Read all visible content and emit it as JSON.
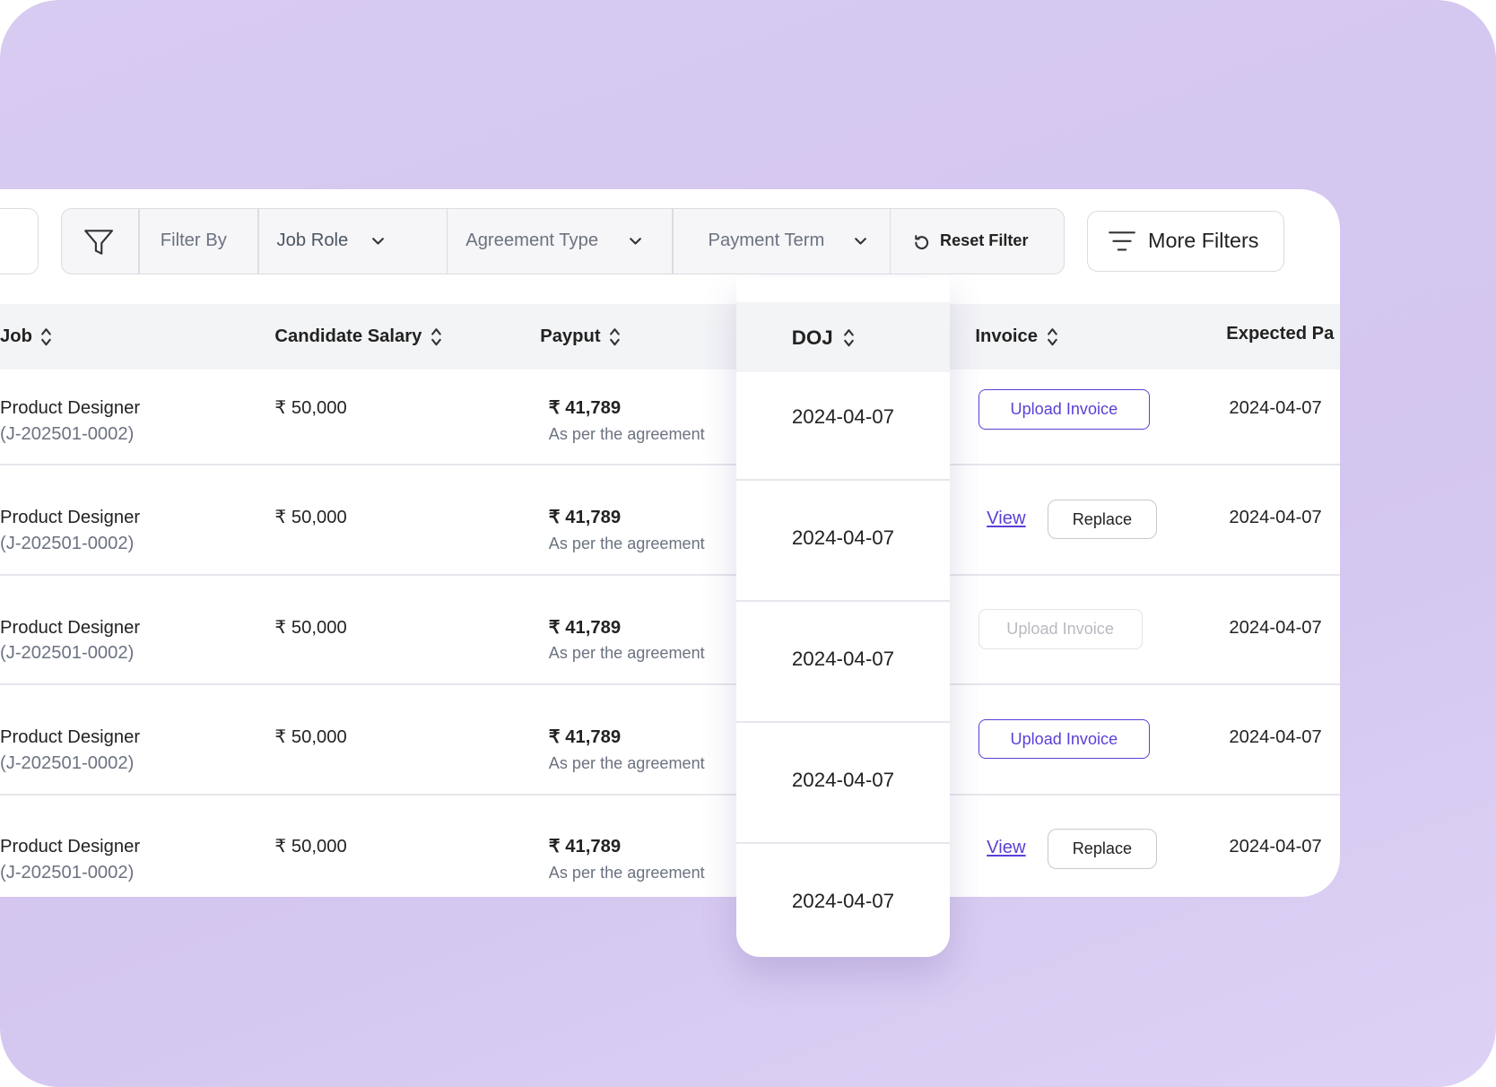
{
  "filters": {
    "filter_by": "Filter By",
    "job_role": "Job Role",
    "agreement_type": "Agreement Type",
    "payment_term": "Payment Term",
    "reset": "Reset Filter",
    "more": "More Filters"
  },
  "table": {
    "columns": [
      "Job",
      "Candidate Salary",
      "Payput",
      "DOJ",
      "Invoice",
      "Expected Pa"
    ],
    "rows": [
      {
        "job": "Product Designer",
        "job_id": "(J-202501-0002)",
        "salary": "₹ 50,000",
        "payout": "₹ 41,789",
        "payout_note": "As per the agreement",
        "doj": "2024-04-07",
        "invoice": [
          "Upload Invoice"
        ],
        "invoice_disabled": false,
        "expected": "2024-04-07"
      },
      {
        "job": "Product Designer",
        "job_id": "(J-202501-0002)",
        "salary": "₹ 50,000",
        "payout": "₹ 41,789",
        "payout_note": "As per the agreement",
        "doj": "2024-04-07",
        "invoice": [
          "View",
          "Replace"
        ],
        "invoice_disabled": false,
        "expected": "2024-04-07"
      },
      {
        "job": "Product Designer",
        "job_id": "(J-202501-0002)",
        "salary": "₹ 50,000",
        "payout": "₹ 41,789",
        "payout_note": "As per the agreement",
        "doj": "2024-04-07",
        "invoice": [
          "Upload Invoice"
        ],
        "invoice_disabled": true,
        "expected": "2024-04-07"
      },
      {
        "job": "Product Designer",
        "job_id": "(J-202501-0002)",
        "salary": "₹ 50,000",
        "payout": "₹ 41,789",
        "payout_note": "As per the agreement",
        "doj": "2024-04-07",
        "invoice": [
          "Upload Invoice"
        ],
        "invoice_disabled": false,
        "expected": "2024-04-07"
      },
      {
        "job": "Product Designer",
        "job_id": "(J-202501-0002)",
        "salary": "₹ 50,000",
        "payout": "₹ 41,789",
        "payout_note": "As per the agreement",
        "doj": "2024-04-07",
        "invoice": [
          "View",
          "Replace"
        ],
        "invoice_disabled": false,
        "expected": "2024-04-07"
      }
    ]
  }
}
